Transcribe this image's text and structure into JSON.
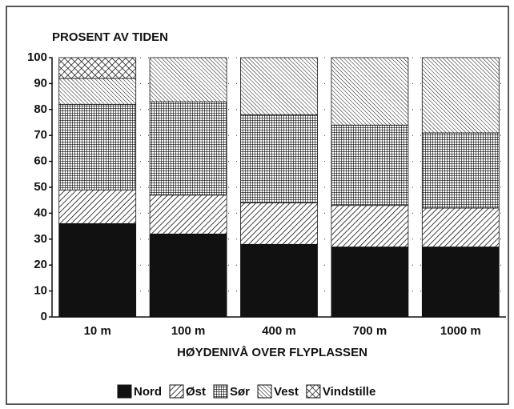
{
  "chart_data": {
    "type": "stacked_bar",
    "title": "PROSENT AV TIDEN",
    "x_label": "HØYDENIVÅ OVER FLYPLASSEN",
    "categories": [
      "10 m",
      "100 m",
      "400 m",
      "700 m",
      "1000 m"
    ],
    "series": [
      {
        "name": "Nord",
        "color": "#111111",
        "values": [
          36,
          32,
          28,
          27,
          27
        ]
      },
      {
        "name": "Øst",
        "color": "#111111",
        "values": [
          13,
          15,
          16,
          16,
          15
        ]
      },
      {
        "name": "Sør",
        "color": "#111111",
        "values": [
          33,
          36,
          34,
          31,
          29
        ]
      },
      {
        "name": "Vest",
        "color": "#111111",
        "values": [
          10,
          17,
          22,
          26,
          29
        ]
      },
      {
        "name": "Vindstille",
        "color": "#111111",
        "values": [
          8,
          0,
          0,
          0,
          0
        ]
      }
    ],
    "ylim": [
      0,
      100
    ],
    "yticks": [
      0,
      10,
      20,
      30,
      40,
      50,
      60,
      70,
      80,
      90,
      100
    ],
    "grid": true,
    "legend": "bottom"
  }
}
